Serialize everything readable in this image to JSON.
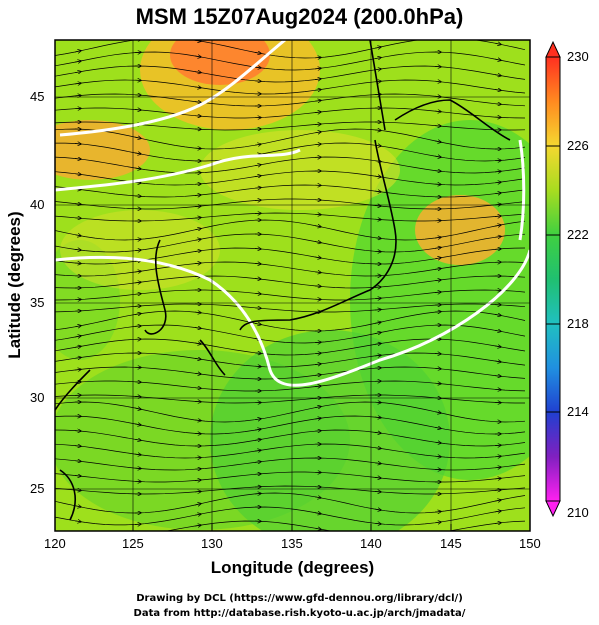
{
  "title": "MSM 15Z07Aug2024 (200.0hPa)",
  "x_axis": {
    "label": "Longitude (degrees)",
    "ticks": [
      "120",
      "125",
      "130",
      "135",
      "140",
      "145",
      "150"
    ],
    "range": [
      120,
      150
    ]
  },
  "y_axis": {
    "label": "Latitude  (degrees)",
    "ticks": [
      "25",
      "30",
      "35",
      "40",
      "45"
    ],
    "range": [
      22.4,
      47.6
    ]
  },
  "colorbar": {
    "min": 210,
    "max": 230,
    "tick_labels": [
      "230",
      "226",
      "222",
      "218",
      "214",
      "210"
    ],
    "colors": [
      "#ff3020",
      "#ff7a20",
      "#ffb030",
      "#f2d830",
      "#c8e020",
      "#80d820",
      "#40d040",
      "#20c060",
      "#20c0b0",
      "#20a0e0",
      "#2060e0",
      "#2030c0",
      "#6020c0",
      "#c020c0",
      "#ff20ff"
    ]
  },
  "credits": {
    "line1": "Drawing by DCL (https://www.gfd-dennou.org/library/dcl/)",
    "line2": "Data from http://database.rish.kyoto-u.ac.jp/arch/jmadata/"
  },
  "contour_color": "#ffffff",
  "coastline_color": "#000000",
  "streamline_color": "#000000"
}
